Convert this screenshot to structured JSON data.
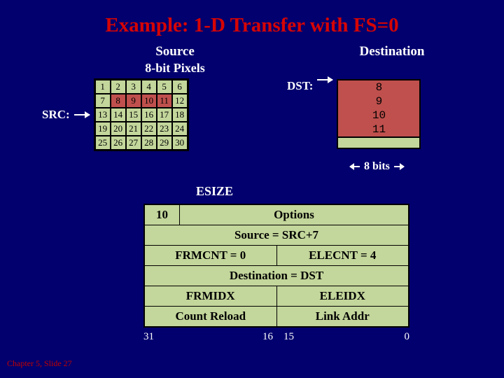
{
  "title": "Example: 1-D Transfer with FS=0",
  "source": {
    "heading": "Source",
    "subheading": "8-bit Pixels",
    "label": "SRC:",
    "cols": 6,
    "rows": 5,
    "highlight_start": 8,
    "highlight_end": 11,
    "cell_bg": "#c3d69b",
    "highlight_bg": "#bf504d"
  },
  "destination": {
    "heading": "Destination",
    "label": "DST:",
    "values": [
      "8",
      "9",
      "10",
      "11"
    ],
    "bg": "#bf504d",
    "footer_bg": "#c3d69b",
    "width_label_left_arrow": true,
    "width_label": "8 bits",
    "width_label_right_arrow": true
  },
  "esize_label": "ESIZE",
  "registers": {
    "bg": "#c3d69b",
    "rows": [
      {
        "cells": [
          {
            "text": "10",
            "small": true
          },
          {
            "text": "Options"
          }
        ]
      },
      {
        "full": "Source = SRC+7"
      },
      {
        "cells": [
          {
            "text": "FRMCNT = 0"
          },
          {
            "text": "ELECNT = 4"
          }
        ]
      },
      {
        "full": "Destination = DST"
      },
      {
        "cells": [
          {
            "text": "FRMIDX"
          },
          {
            "text": "ELEIDX"
          }
        ]
      },
      {
        "cells": [
          {
            "text": "Count Reload"
          },
          {
            "text": "Link Addr"
          }
        ]
      }
    ],
    "bit_numbers": [
      "31",
      "16",
      "15",
      "0"
    ]
  },
  "footer": "Chapter 5, Slide 27",
  "colors": {
    "page_bg": "#02006e",
    "title_color": "#d60404",
    "text_white": "#ffffff",
    "border": "#000000"
  }
}
